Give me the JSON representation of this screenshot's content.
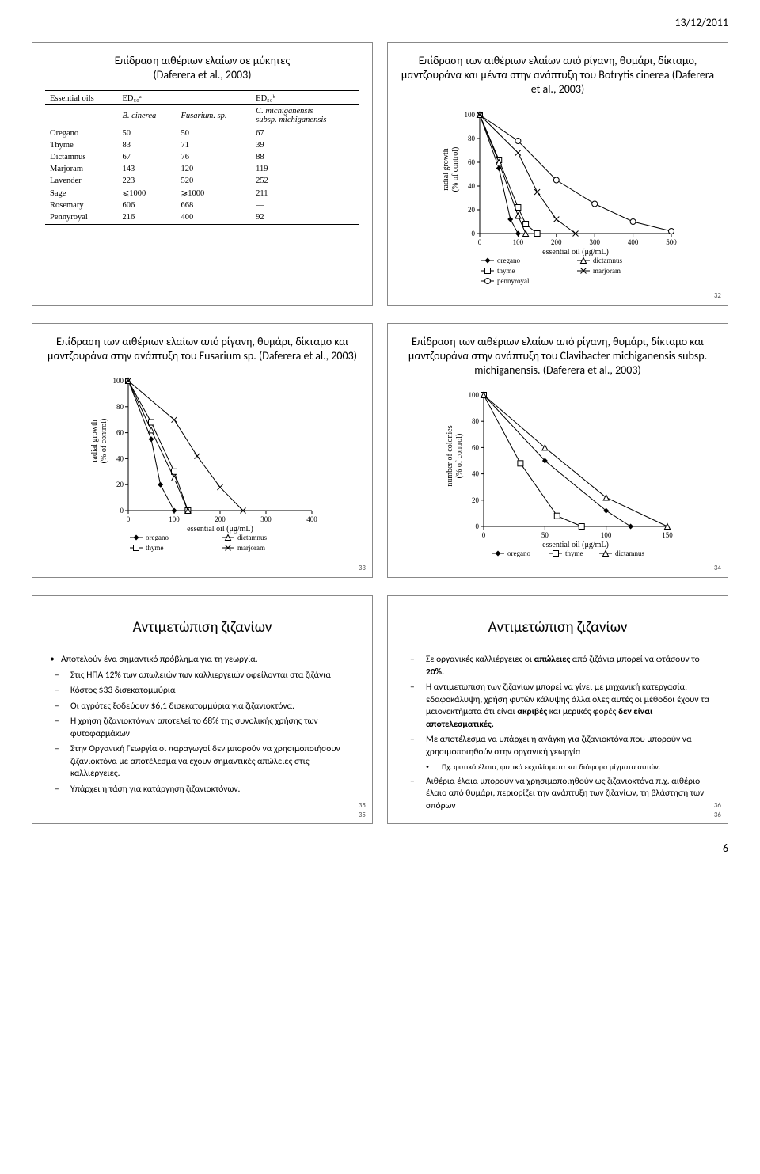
{
  "header_date": "13/12/2011",
  "page_number": "6",
  "panels": {
    "p31": {
      "title_l1": "Επίδραση αιθέριων ελαίων σε μύκητες",
      "title_l2": "(Daferera et al., 2003)",
      "table": {
        "head_essential": "Essential oils",
        "head_ed50a": "ED₅₀ᵃ",
        "head_ed50b": "ED₅₀ᵇ",
        "sub_b": "B. cinerea",
        "sub_f": "Fusarium. sp.",
        "sub_c1": "C. michiganensis",
        "sub_c2": "subsp. michiganensis",
        "rows": [
          [
            "Oregano",
            "50",
            "50",
            "67"
          ],
          [
            "Thyme",
            "83",
            "71",
            "39"
          ],
          [
            "Dictamnus",
            "67",
            "76",
            "88"
          ],
          [
            "Marjoram",
            "143",
            "120",
            "119"
          ],
          [
            "Lavender",
            "223",
            "520",
            "252"
          ],
          [
            "Sage",
            "⩽1000",
            "⩾1000",
            "211"
          ],
          [
            "Rosemary",
            "606",
            "668",
            "—"
          ],
          [
            "Pennyroyal",
            "216",
            "400",
            "92"
          ]
        ]
      }
    },
    "p32": {
      "title": "Επίδραση των αιθέριων ελαίων από ρίγανη, θυμάρι, δίκταμο, μαντζουράνα και μέντα στην ανάπτυξη του Botrytis cinerea (Daferera et al., 2003)",
      "chart": {
        "type": "line",
        "xlabel": "essential oil (μg/mL)",
        "ylabel_l1": "radial growth",
        "ylabel_l2": "(% of control)",
        "xlim": [
          0,
          500
        ],
        "xtick_step": 100,
        "ylim": [
          0,
          100
        ],
        "ytick_step": 20,
        "series": [
          {
            "name": "oregano",
            "marker": "diamond-filled",
            "x": [
              0,
              50,
              80,
              100
            ],
            "y": [
              100,
              55,
              12,
              0
            ]
          },
          {
            "name": "thyme",
            "marker": "square-open",
            "x": [
              0,
              50,
              100,
              120,
              150
            ],
            "y": [
              100,
              62,
              22,
              8,
              0
            ]
          },
          {
            "name": "pennyroyal",
            "marker": "circle-open",
            "x": [
              0,
              100,
              200,
              300,
              400,
              500
            ],
            "y": [
              100,
              78,
              45,
              25,
              10,
              2
            ]
          },
          {
            "name": "dictamnus",
            "marker": "triangle-open",
            "x": [
              0,
              50,
              100,
              120
            ],
            "y": [
              100,
              60,
              15,
              0
            ]
          },
          {
            "name": "marjoram",
            "marker": "x",
            "x": [
              0,
              100,
              150,
              200,
              250
            ],
            "y": [
              100,
              68,
              35,
              12,
              0
            ]
          }
        ],
        "legend": [
          [
            "oregano",
            "diamond-filled"
          ],
          [
            "dictamnus",
            "triangle-open"
          ],
          [
            "thyme",
            "square-open"
          ],
          [
            "marjoram",
            "x"
          ],
          [
            "pennyroyal",
            "circle-open"
          ]
        ]
      },
      "slide_num": "32"
    },
    "p33": {
      "title": "Επίδραση των αιθέριων ελαίων από ρίγανη, θυμάρι, δίκταμο και μαντζουράνα στην ανάπτυξη του Fusarium sp. (Daferera et al., 2003)",
      "chart": {
        "type": "line",
        "xlabel": "essential oil (μg/mL)",
        "ylabel_l1": "radial growth",
        "ylabel_l2": "(% of control)",
        "xlim": [
          0,
          400
        ],
        "xtick_step": 100,
        "ylim": [
          0,
          100
        ],
        "ytick_step": 20,
        "series": [
          {
            "name": "oregano",
            "marker": "diamond-filled",
            "x": [
              0,
              50,
              70,
              100
            ],
            "y": [
              100,
              55,
              20,
              0
            ]
          },
          {
            "name": "thyme",
            "marker": "square-open",
            "x": [
              0,
              50,
              100,
              130
            ],
            "y": [
              100,
              68,
              30,
              0
            ]
          },
          {
            "name": "dictamnus",
            "marker": "triangle-open",
            "x": [
              0,
              50,
              100,
              130
            ],
            "y": [
              100,
              62,
              25,
              0
            ]
          },
          {
            "name": "marjoram",
            "marker": "x",
            "x": [
              0,
              100,
              150,
              200,
              250
            ],
            "y": [
              100,
              70,
              42,
              18,
              0
            ]
          }
        ],
        "legend": [
          [
            "oregano",
            "diamond-filled"
          ],
          [
            "dictamnus",
            "triangle-open"
          ],
          [
            "thyme",
            "square-open"
          ],
          [
            "marjoram",
            "x"
          ]
        ]
      },
      "slide_num": "33"
    },
    "p34": {
      "title": "Επίδραση των αιθέριων ελαίων από ρίγανη, θυμάρι, δίκταμο και μαντζουράνα στην ανάπτυξη του Clavibacter michiganensis subsp. michiganensis. (Daferera et al., 2003)",
      "chart": {
        "type": "line",
        "xlabel": "essential oil (μg/mL)",
        "ylabel_l1": "number of colonies",
        "ylabel_l2": "(% of control)",
        "xlim": [
          0,
          150
        ],
        "xtick_step": 50,
        "ylim": [
          0,
          100
        ],
        "ytick_step": 20,
        "series": [
          {
            "name": "oregano",
            "marker": "diamond-filled",
            "x": [
              0,
              50,
              100,
              120
            ],
            "y": [
              100,
              50,
              12,
              0
            ]
          },
          {
            "name": "thyme",
            "marker": "square-open",
            "x": [
              0,
              30,
              60,
              80
            ],
            "y": [
              100,
              48,
              8,
              0
            ]
          },
          {
            "name": "dictamnus",
            "marker": "triangle-open",
            "x": [
              0,
              50,
              100,
              150
            ],
            "y": [
              100,
              60,
              22,
              0
            ]
          }
        ],
        "legend": [
          [
            "oregano",
            "diamond-filled"
          ],
          [
            "thyme",
            "square-open"
          ],
          [
            "dictamnus",
            "triangle-open"
          ]
        ],
        "legend_layout": "row"
      },
      "slide_num": "34"
    },
    "p35": {
      "title": "Αντιμετώπιση ζιζανίων",
      "bullets": [
        {
          "t": "main",
          "text": "Αποτελούν ένα σημαντικό πρόβλημα για τη γεωργία."
        },
        {
          "t": "dash",
          "text": "Στις ΗΠΑ 12% των απωλειών των καλλιεργειών οφείλονται στα ζιζάνια"
        },
        {
          "t": "dash",
          "text": "Κόστος $33 δισεκατομμύρια"
        },
        {
          "t": "dash",
          "text": "Οι αγρότες ξοδεύουν $6,1 δισεκατομμύρια για ζιζανιοκτόνα."
        },
        {
          "t": "dash",
          "text": "Η χρήση ζιζανιοκτόνων αποτελεί το 68% της συνολικής χρήσης των φυτοφαρμάκων"
        },
        {
          "t": "dash",
          "text": "Στην Οργανική Γεωργία οι παραγωγοί δεν μπορούν να χρησιμοποιήσουν ζιζανιοκτόνα με αποτέλεσμα να έχουν σημαντικές απώλειες στις καλλιέργειες."
        },
        {
          "t": "dash",
          "text": "Υπάρχει η τάση για κατάργηση ζιζανιοκτόνων."
        }
      ],
      "slide_num": "35"
    },
    "p36": {
      "title": "Αντιμετώπιση ζιζανίων",
      "bullets": [
        {
          "t": "dash",
          "html": "Σε οργανικές καλλιέργειες οι <b>απώλειες</b> από ζιζάνια μπορεί να φτάσουν το <b>20%.</b>"
        },
        {
          "t": "dash",
          "html": "Η αντιμετώπιση των ζιζανίων μπορεί να γίνει με μηχανική κατεργασία, εδαφοκάλυψη, χρήση φυτών κάλυψης άλλα όλες αυτές οι μέθοδοι έχουν τα μειονεκτήματα ότι είναι <b>ακριβές</b> και μερικές φορές <b>δεν είναι αποτελεσματικές.</b>"
        },
        {
          "t": "dash",
          "html": "Με αποτέλεσμα να υπάρχει η ανάγκη για ζιζανιοκτόνα που μπορούν να χρησιμοποιηθούν στην οργανική γεωργία"
        },
        {
          "t": "dot2",
          "html": "Πχ. φυτικά έλαια, φυτικά εκχυλίσματα και διάφορα μίγματα αυτών."
        },
        {
          "t": "dash",
          "html": "Αιθέρια έλαια μπορούν να χρησιμοποιηθούν ως ζιζανιοκτόνα π.χ. αιθέριο έλαιο από θυμάρι, περιορίζει την ανάπτυξη των ζιζανίων, τη βλάστηση των σπόρων"
        }
      ],
      "slide_num": "36"
    }
  },
  "styling": {
    "stroke": "#000000",
    "bg": "#ffffff",
    "border": "#888888",
    "header_fontsize": 14
  }
}
